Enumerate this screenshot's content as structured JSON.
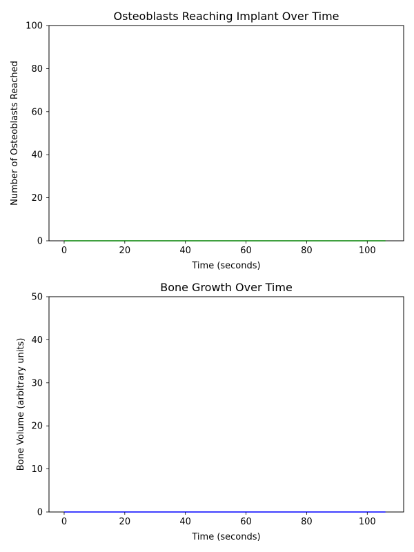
{
  "chart_data": [
    {
      "type": "line",
      "title": "Osteoblasts Reaching Implant Over Time",
      "xlabel": "Time (seconds)",
      "ylabel": "Number of Osteoblasts Reached",
      "xlim": [
        -5,
        112
      ],
      "ylim": [
        0,
        100
      ],
      "xticks": [
        0,
        20,
        40,
        60,
        80,
        100
      ],
      "yticks": [
        0,
        20,
        40,
        60,
        80,
        100
      ],
      "grid": false,
      "series": [
        {
          "color": "#008000",
          "x": [
            0,
            106
          ],
          "y": [
            0,
            0
          ]
        }
      ]
    },
    {
      "type": "line",
      "title": "Bone Growth Over Time",
      "xlabel": "Time (seconds)",
      "ylabel": "Bone Volume (arbitrary units)",
      "xlim": [
        -5,
        112
      ],
      "ylim": [
        0,
        50
      ],
      "xticks": [
        0,
        20,
        40,
        60,
        80,
        100
      ],
      "yticks": [
        0,
        10,
        20,
        30,
        40,
        50
      ],
      "grid": false,
      "series": [
        {
          "color": "#0000ff",
          "x": [
            0,
            106
          ],
          "y": [
            0,
            0
          ]
        }
      ]
    }
  ]
}
